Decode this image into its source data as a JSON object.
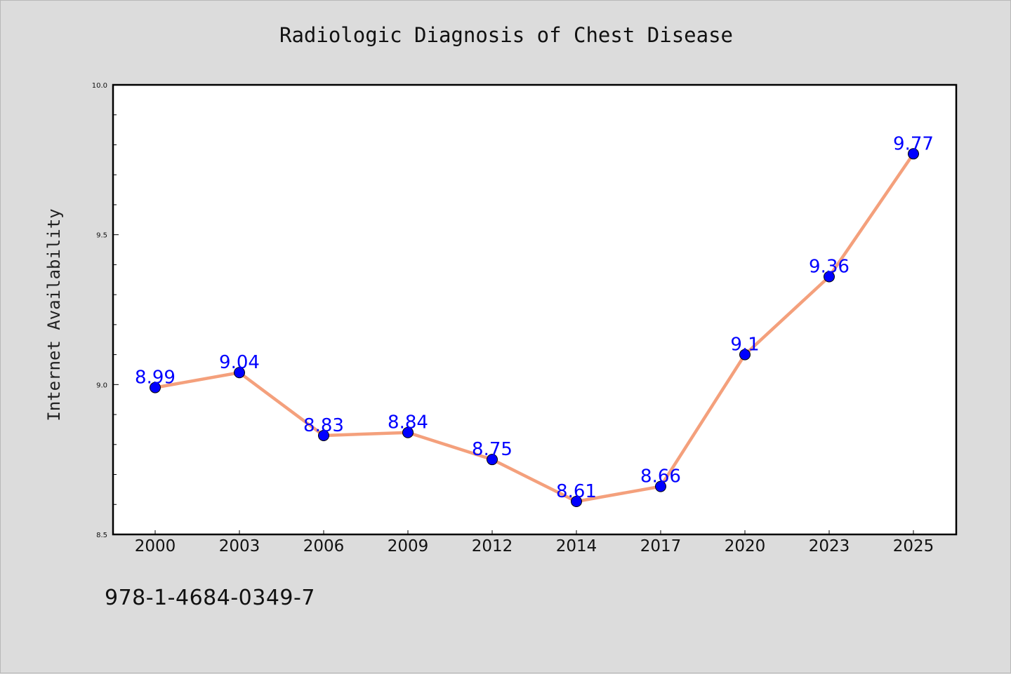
{
  "colors": {
    "line": "#f4a07c",
    "marker": "#0000ff",
    "data_label": "#0000ff",
    "plot_background": "#ffffff",
    "page_background": "#dcdcdc"
  },
  "footer": {
    "code": "978-1-4684-0349-7"
  },
  "chart_data": {
    "type": "line",
    "title": "Radiologic Diagnosis of Chest Disease",
    "xlabel": "",
    "ylabel": "Internet Availability",
    "categories": [
      "2000",
      "2003",
      "2006",
      "2009",
      "2012",
      "2014",
      "2017",
      "2020",
      "2023",
      "2025"
    ],
    "series": [
      {
        "values": [
          8.99,
          9.04,
          8.83,
          8.84,
          8.75,
          8.61,
          8.66,
          9.1,
          9.36,
          9.77
        ],
        "labels": [
          "8.99",
          "9.04",
          "8.83",
          "8.84",
          "8.75",
          "8.61",
          "8.66",
          "9.1",
          "9.36",
          "9.77"
        ]
      }
    ],
    "ylim": [
      8.5,
      10.0
    ],
    "yticks": [
      "8.5",
      "9.0",
      "9.5",
      "10.0"
    ],
    "grid": false,
    "legend": "none"
  }
}
